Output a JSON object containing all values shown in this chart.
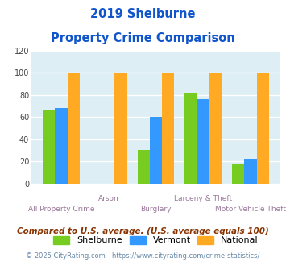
{
  "title_line1": "2019 Shelburne",
  "title_line2": "Property Crime Comparison",
  "categories": [
    "All Property Crime",
    "Arson",
    "Burglary",
    "Larceny & Theft",
    "Motor Vehicle Theft"
  ],
  "shelburne": [
    66,
    0,
    30,
    82,
    17
  ],
  "vermont": [
    68,
    0,
    60,
    76,
    22
  ],
  "national": [
    100,
    100,
    100,
    100,
    100
  ],
  "shelburne_color": "#77cc22",
  "vermont_color": "#3399ff",
  "national_color": "#ffaa22",
  "ylim": [
    0,
    120
  ],
  "yticks": [
    0,
    20,
    40,
    60,
    80,
    100,
    120
  ],
  "bg_plot": "#ddeef5",
  "bg_fig": "#ffffff",
  "grid_color": "#ffffff",
  "xlabel_color_top": "#997799",
  "xlabel_color_bot": "#997799",
  "title_color": "#1155cc",
  "legend_labels": [
    "Shelburne",
    "Vermont",
    "National"
  ],
  "footnote1": "Compared to U.S. average. (U.S. average equals 100)",
  "footnote2": "© 2025 CityRating.com - https://www.cityrating.com/crime-statistics/",
  "footnote1_color": "#883300",
  "footnote2_color": "#6688aa"
}
